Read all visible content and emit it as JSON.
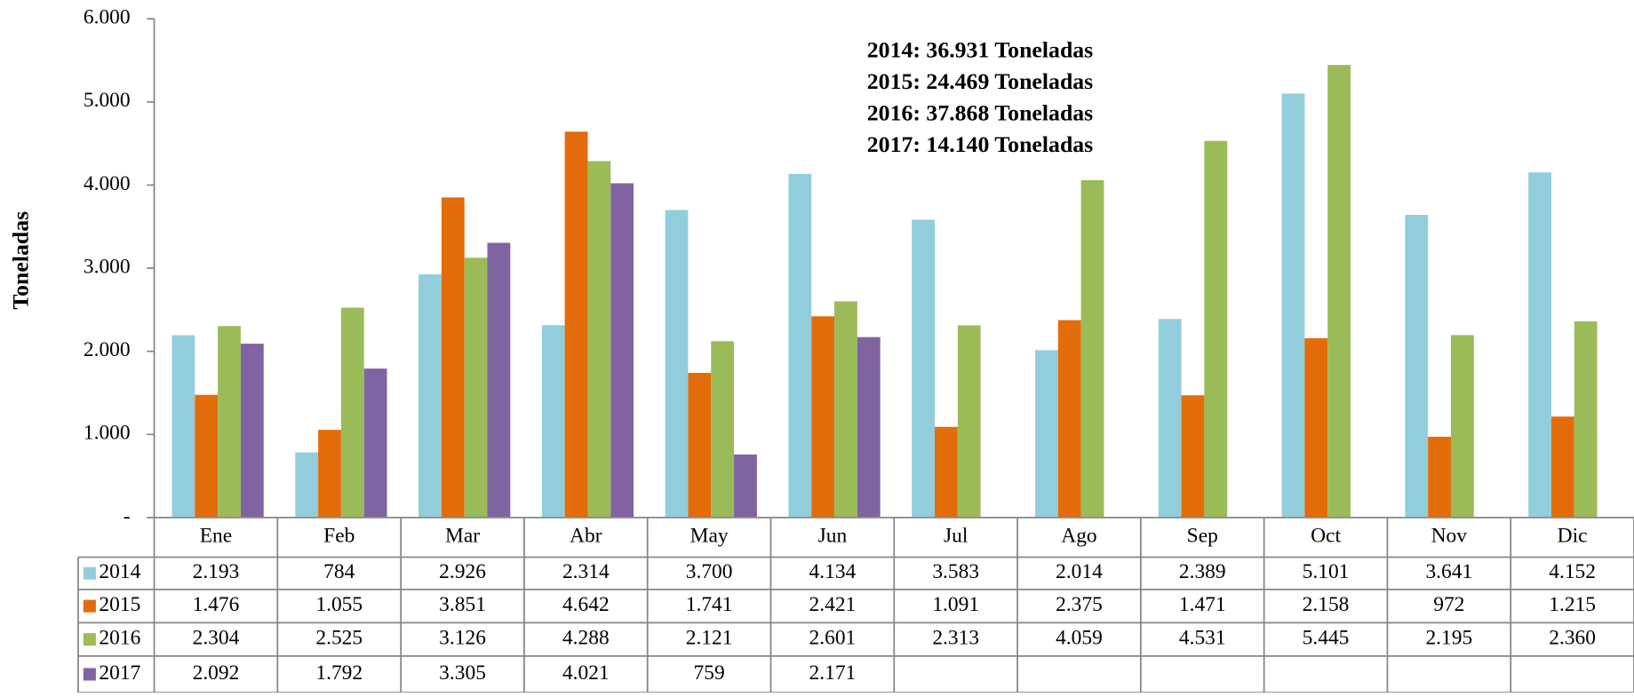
{
  "chart_data": {
    "type": "bar",
    "y_label": "Toneladas",
    "annotations": [
      "2014: 36.931 Toneladas",
      "2015: 24.469 Toneladas",
      "2016: 37.868 Toneladas",
      "2017:  14.140 Toneladas"
    ],
    "categories": [
      "Ene",
      "Feb",
      "Mar",
      "Abr",
      "May",
      "Jun",
      "Jul",
      "Ago",
      "Sep",
      "Oct",
      "Nov",
      "Dic"
    ],
    "series": [
      {
        "name": "2014",
        "color": "#92cddc",
        "values": [
          2193,
          784,
          2926,
          2314,
          3700,
          4134,
          3583,
          2014,
          2389,
          5101,
          3641,
          4152
        ],
        "value_labels": [
          "2.193",
          "784",
          "2.926",
          "2.314",
          "3.700",
          "4.134",
          "3.583",
          "2.014",
          "2.389",
          "5.101",
          "3.641",
          "4.152"
        ]
      },
      {
        "name": "2015",
        "color": "#e36c0a",
        "values": [
          1476,
          1055,
          3851,
          4642,
          1741,
          2421,
          1091,
          2375,
          1471,
          2158,
          972,
          1215
        ],
        "value_labels": [
          "1.476",
          "1.055",
          "3.851",
          "4.642",
          "1.741",
          "2.421",
          "1.091",
          "2.375",
          "1.471",
          "2.158",
          "972",
          "1.215"
        ]
      },
      {
        "name": "2016",
        "color": "#9bbb59",
        "values": [
          2304,
          2525,
          3126,
          4288,
          2121,
          2601,
          2313,
          4059,
          4531,
          5445,
          2195,
          2360
        ],
        "value_labels": [
          "2.304",
          "2.525",
          "3.126",
          "4.288",
          "2.121",
          "2.601",
          "2.313",
          "4.059",
          "4.531",
          "5.445",
          "2.195",
          "2.360"
        ]
      },
      {
        "name": "2017",
        "color": "#8064a2",
        "values": [
          2092,
          1792,
          3305,
          4021,
          759,
          2171,
          null,
          null,
          null,
          null,
          null,
          null
        ],
        "value_labels": [
          "2.092",
          "1.792",
          "3.305",
          "4.021",
          "759",
          "2.171",
          null,
          null,
          null,
          null,
          null,
          null
        ]
      }
    ],
    "ylim": [
      0,
      6000
    ],
    "yticks": [
      {
        "value": 0,
        "label": "-"
      },
      {
        "value": 1000,
        "label": "1.000"
      },
      {
        "value": 2000,
        "label": "2.000"
      },
      {
        "value": 3000,
        "label": "3.000"
      },
      {
        "value": 4000,
        "label": "4.000"
      },
      {
        "value": 5000,
        "label": "5.000"
      },
      {
        "value": 6000,
        "label": "6.000"
      }
    ]
  }
}
